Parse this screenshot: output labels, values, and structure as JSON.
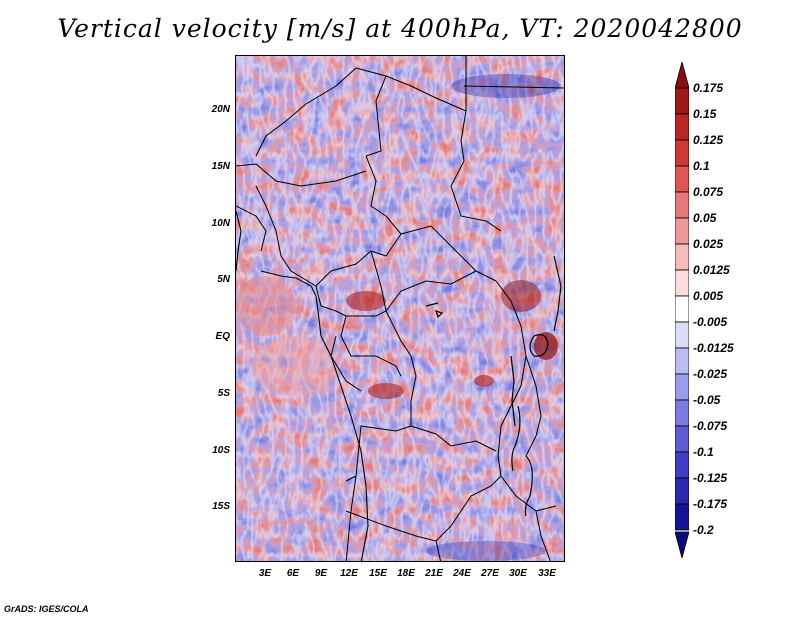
{
  "title": "Vertical velocity [m/s] at 400hPa, VT: 2020042800",
  "map": {
    "lat_labels": [
      "20N",
      "15N",
      "10N",
      "5N",
      "EQ",
      "5S",
      "10S",
      "15S"
    ],
    "lon_labels": [
      "3E",
      "6E",
      "9E",
      "12E",
      "15E",
      "18E",
      "21E",
      "24E",
      "27E",
      "30E",
      "33E"
    ]
  },
  "colorbar": {
    "labels": [
      "0.175",
      "0.15",
      "0.125",
      "0.1",
      "0.075",
      "0.05",
      "0.025",
      "0.0125",
      "0.005",
      "-0.005",
      "-0.0125",
      "-0.025",
      "-0.05",
      "-0.075",
      "-0.1",
      "-0.125",
      "-0.175",
      "-0.2"
    ],
    "colors": [
      "#a01818",
      "#bd2424",
      "#d03838",
      "#de5656",
      "#e87878",
      "#f09898",
      "#f7bcbc",
      "#fbdcdc",
      "#ffffff",
      "#dcdcf8",
      "#bcbcf4",
      "#9c9cee",
      "#7c7ce4",
      "#5c5cd6",
      "#3e3ec6",
      "#2828b0",
      "#141496"
    ],
    "top_color": "#8a0c0c",
    "bottom_color": "#0a0a80"
  },
  "credit": "GrADS: IGES/COLA"
}
